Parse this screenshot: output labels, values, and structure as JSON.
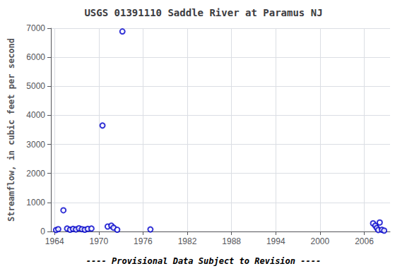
{
  "chart_data": {
    "type": "scatter",
    "title": "USGS 01391110 Saddle River at Paramus NJ",
    "ylabel": "Streamflow, in cubic feet per second",
    "annotations": [
      "---- Provisional Data Subject to Revision ----"
    ],
    "x": [
      1964.2,
      1964.5,
      1965.2,
      1965.7,
      1966.1,
      1966.5,
      1966.9,
      1967.3,
      1967.7,
      1968.1,
      1968.5,
      1969.0,
      1970.5,
      1971.2,
      1971.7,
      1972.0,
      1972.5,
      1973.2,
      1977.0,
      2007.2,
      2007.5,
      2007.7,
      2007.9,
      2008.1,
      2008.4,
      2008.7
    ],
    "values": [
      50,
      80,
      730,
      100,
      60,
      90,
      70,
      110,
      80,
      60,
      90,
      100,
      3650,
      170,
      200,
      130,
      60,
      6890,
      70,
      280,
      200,
      120,
      50,
      310,
      60,
      30
    ],
    "color": "#0000cc",
    "marker": "emptyCircle",
    "xlim": [
      1963.5,
      2009.5
    ],
    "xticks": [
      1964,
      1970,
      1976,
      1982,
      1988,
      1994,
      2000,
      2006
    ],
    "ylim": [
      0,
      7000
    ],
    "yticks": [
      0,
      1000,
      2000,
      3000,
      4000,
      5000,
      6000,
      7000
    ],
    "grid": true
  }
}
